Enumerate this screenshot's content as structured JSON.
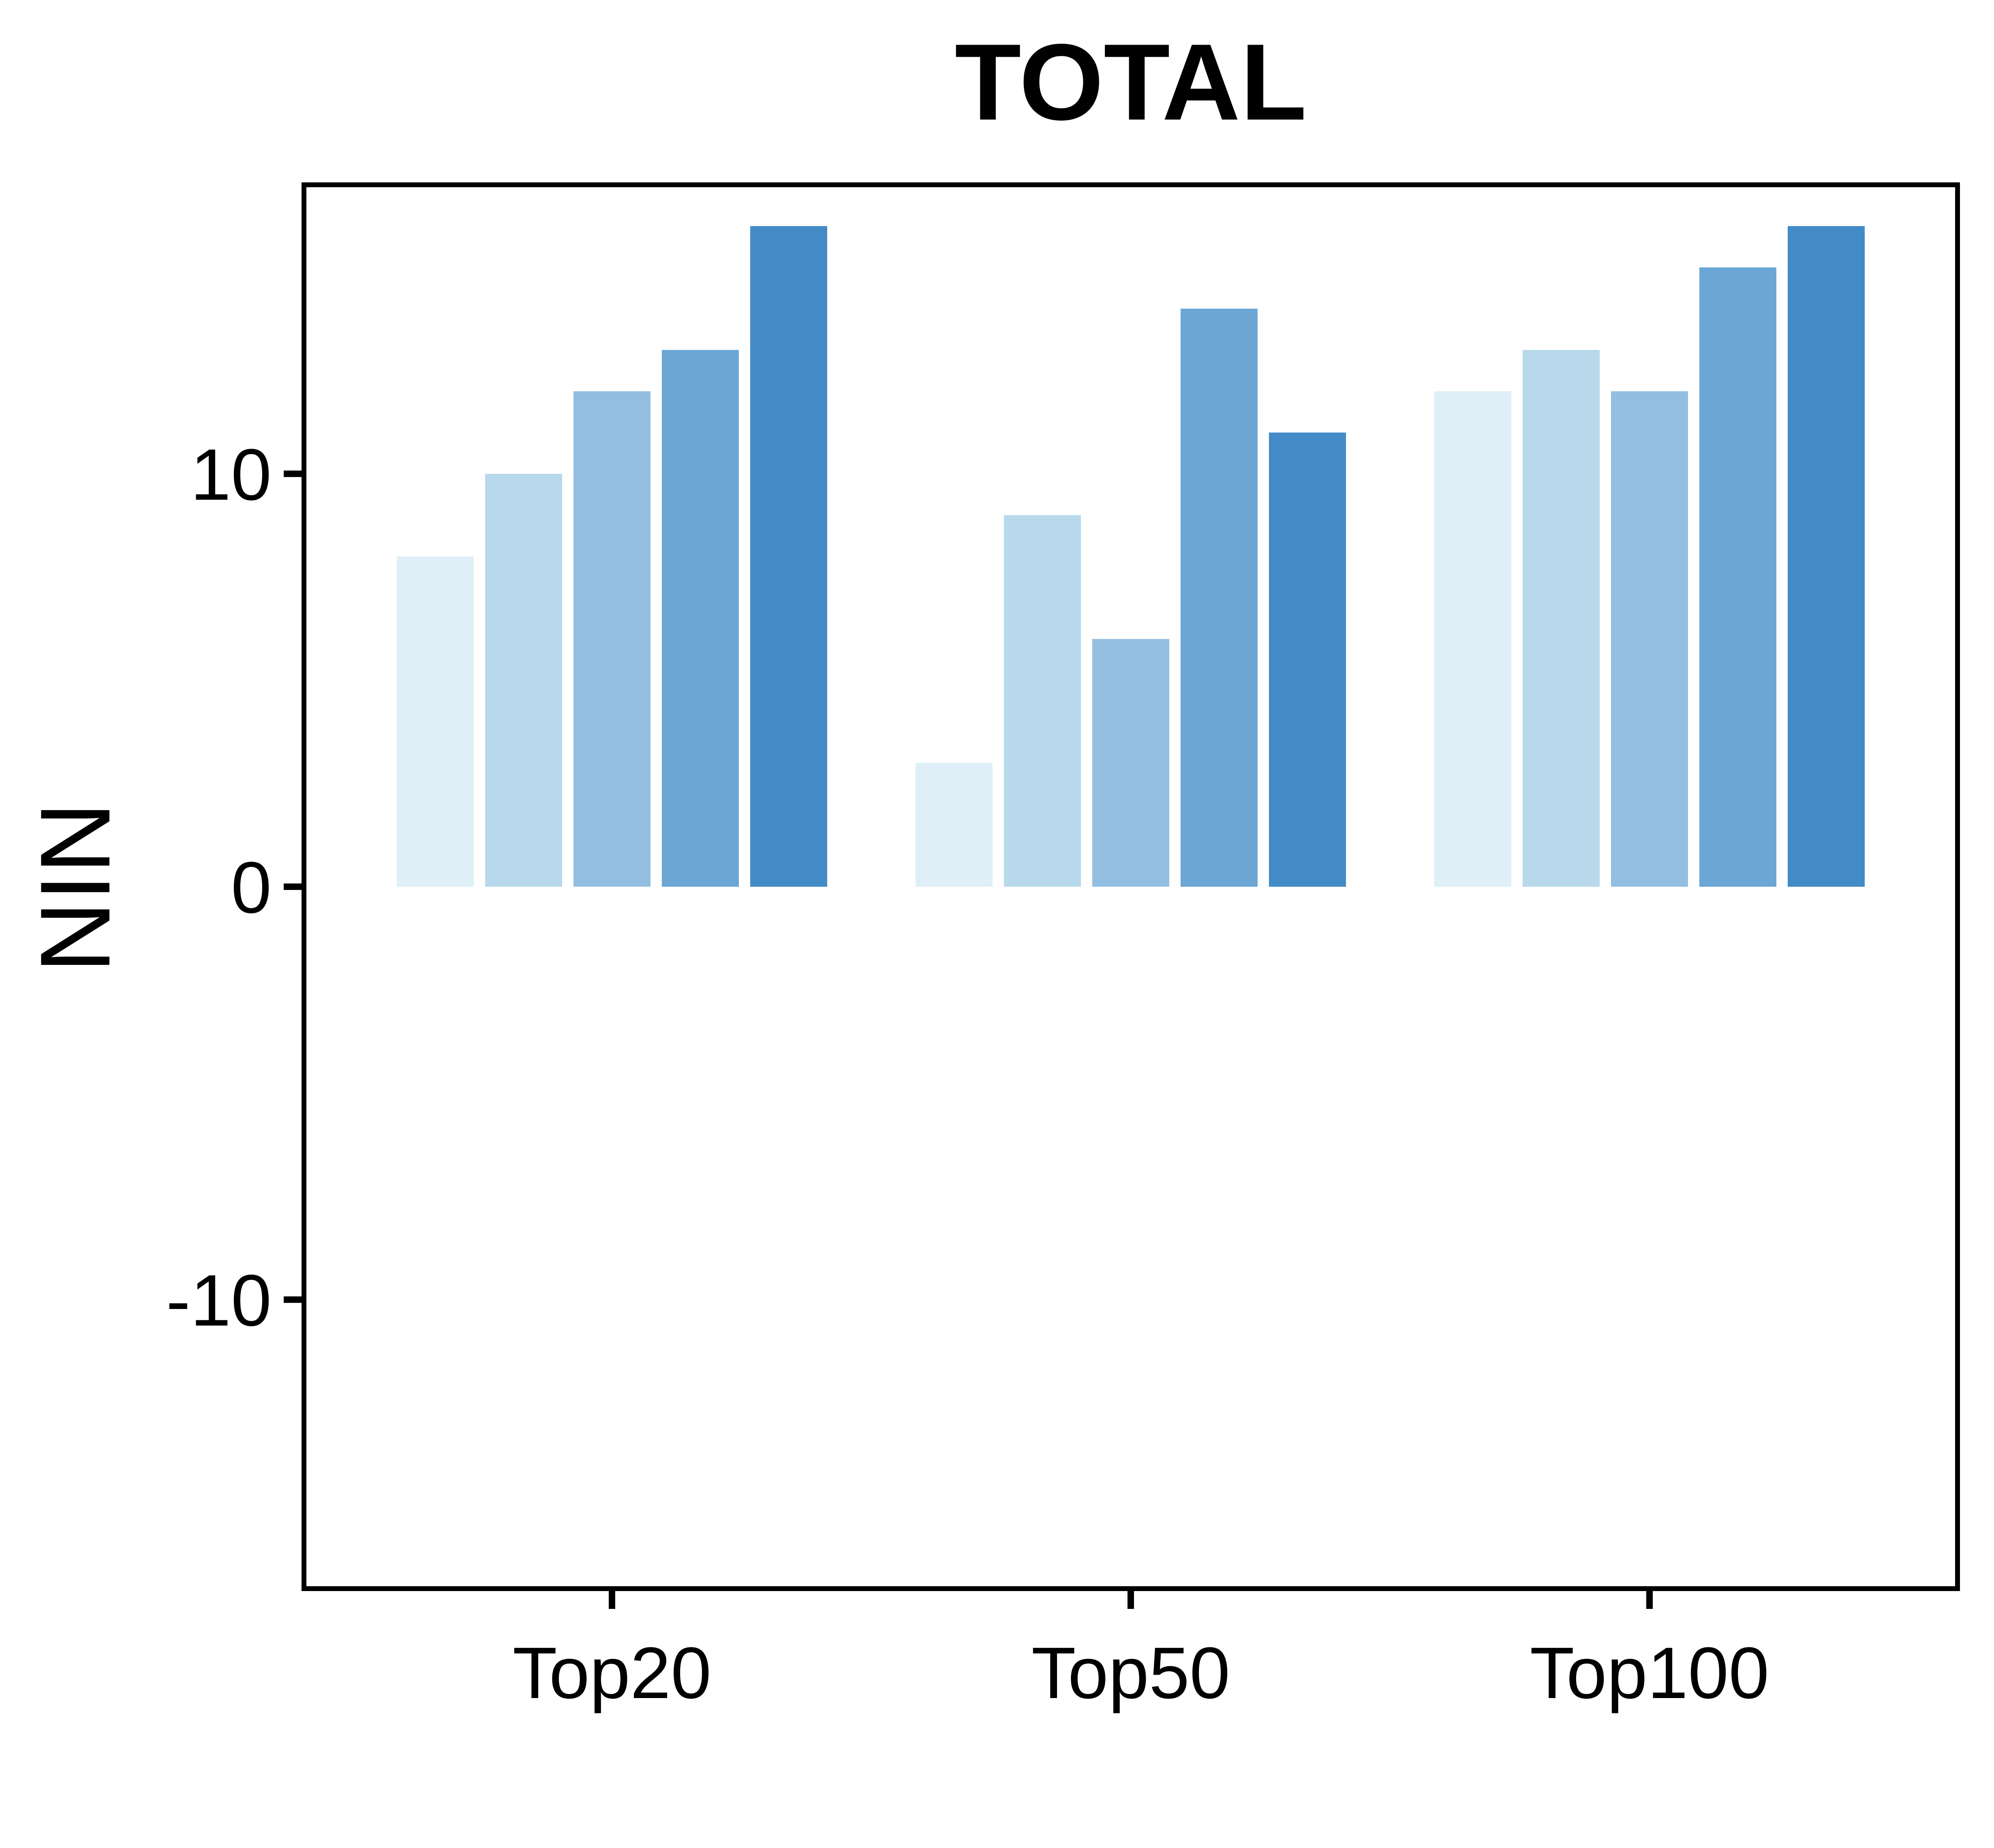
{
  "chart_data": {
    "type": "bar",
    "title": "TOTAL",
    "xlabel": "",
    "ylabel": "NIN",
    "categories": [
      "Top20",
      "Top50",
      "Top100"
    ],
    "yticks": [
      -10,
      0,
      10
    ],
    "ytick_labels": [
      "-10",
      "0",
      "10"
    ],
    "ylim": [
      -17,
      17
    ],
    "grid": false,
    "legend": "none",
    "series": [
      {
        "values": [
          8,
          3,
          12
        ],
        "color": "#deeff7"
      },
      {
        "values": [
          10,
          9,
          13
        ],
        "color": "#b8d8ec"
      },
      {
        "values": [
          12,
          6,
          12
        ],
        "color": "#93bedf"
      },
      {
        "values": [
          13,
          14,
          15
        ],
        "color": "#6ba6d4"
      },
      {
        "values": [
          16,
          11,
          16
        ],
        "color": "#428bc6"
      }
    ]
  }
}
